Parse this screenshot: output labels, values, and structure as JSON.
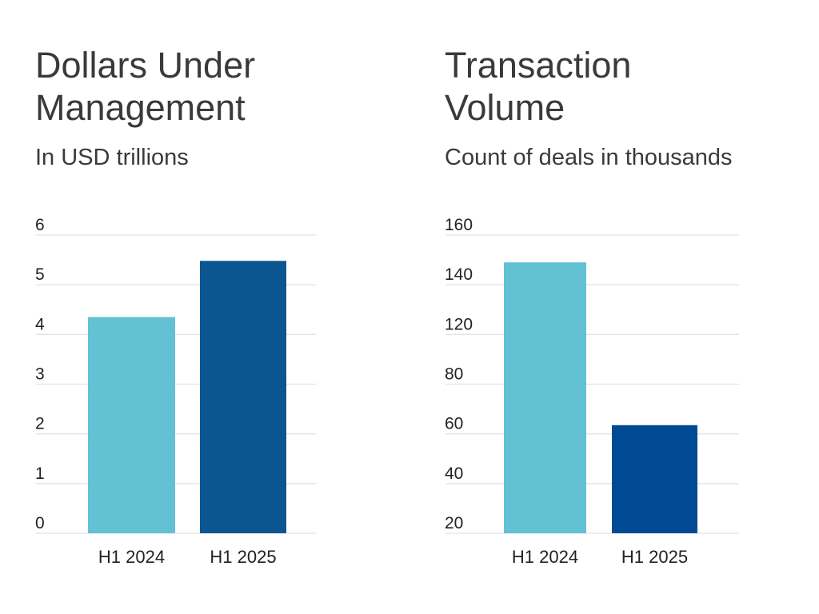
{
  "chart_data": [
    {
      "type": "bar",
      "title": "Dollars Under Management",
      "subtitle": "In USD trillions",
      "xlabel": "",
      "ylabel": "",
      "categories": [
        "H1 2024",
        "H1 2025"
      ],
      "values": [
        4.35,
        5.48
      ],
      "colors": [
        "#62c1d3",
        "#0b5591"
      ],
      "yticks": [
        "0",
        "1",
        "2",
        "3",
        "4",
        "5",
        "6"
      ],
      "ylim": [
        0,
        6
      ],
      "grid": true,
      "legend": "none"
    },
    {
      "type": "bar",
      "title": "Transaction Volume",
      "subtitle": "Count of deals in thousands",
      "xlabel": "",
      "ylabel": "",
      "categories": [
        "H1 2024",
        "H1 2025"
      ],
      "values": [
        149,
        63.5
      ],
      "colors": [
        "#62c1d3",
        "#004a93"
      ],
      "yticks": [
        "20",
        "40",
        "60",
        "80",
        "120",
        "140",
        "160"
      ],
      "ylim": [
        20,
        160
      ],
      "grid": true,
      "legend": "none"
    }
  ]
}
